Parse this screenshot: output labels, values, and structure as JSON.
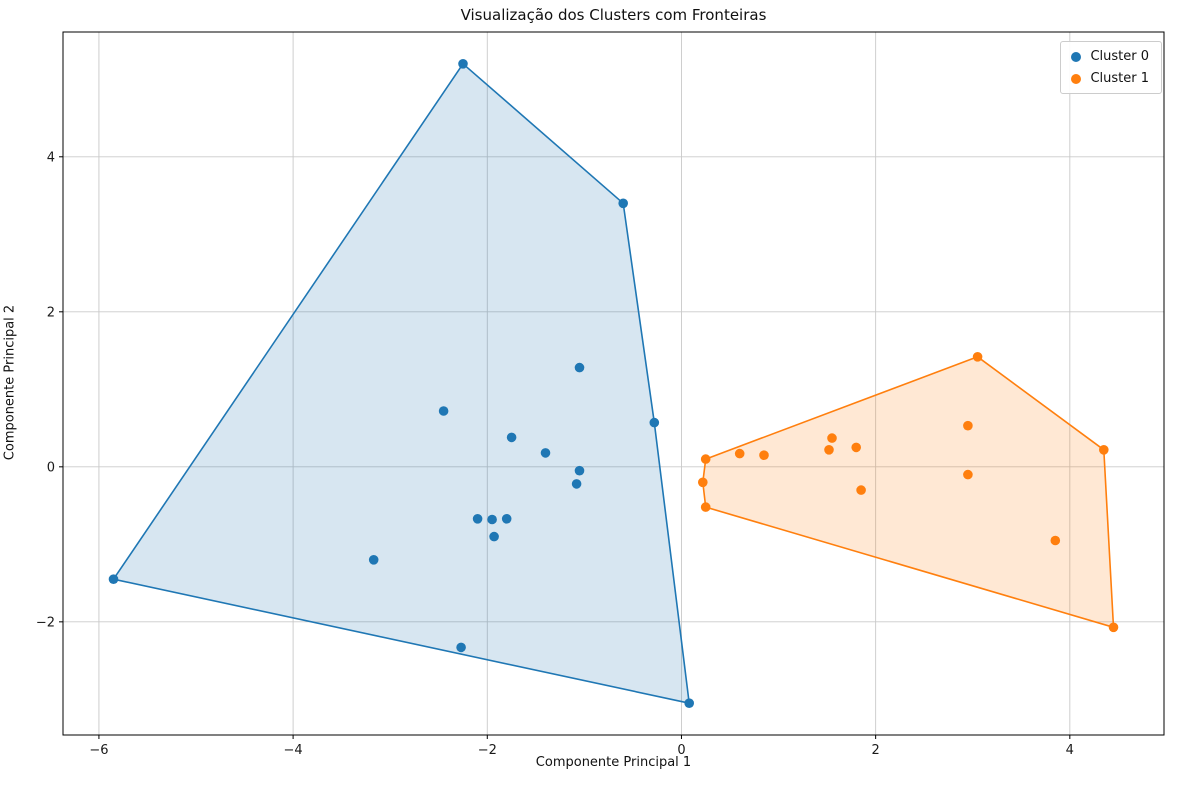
{
  "chart_data": {
    "type": "scatter",
    "title": "Visualização dos Clusters com Fronteiras",
    "xlabel": "Componente Principal 1",
    "ylabel": "Componente Principal 2",
    "xlim": [
      -6.37,
      4.97
    ],
    "ylim": [
      -3.46,
      5.61
    ],
    "xticks": [
      -6,
      -4,
      -2,
      0,
      2,
      4
    ],
    "yticks": [
      -2,
      0,
      2,
      4
    ],
    "grid": true,
    "legend_position": "upper right",
    "series": [
      {
        "name": "Cluster 0",
        "color": "#1f77b4",
        "fill_alpha": 0.18,
        "points": [
          [
            -5.85,
            -1.45
          ],
          [
            -3.17,
            -1.2
          ],
          [
            -2.45,
            0.72
          ],
          [
            -2.27,
            -2.33
          ],
          [
            -2.25,
            5.2
          ],
          [
            -2.1,
            -0.67
          ],
          [
            -1.95,
            -0.68
          ],
          [
            -1.93,
            -0.9
          ],
          [
            -1.8,
            -0.67
          ],
          [
            -1.75,
            0.38
          ],
          [
            -1.4,
            0.18
          ],
          [
            -1.05,
            1.28
          ],
          [
            -1.05,
            -0.05
          ],
          [
            -1.08,
            -0.22
          ],
          [
            -0.6,
            3.4
          ],
          [
            -0.28,
            0.57
          ],
          [
            0.08,
            -3.05
          ]
        ],
        "hull": [
          [
            -5.85,
            -1.45
          ],
          [
            -2.25,
            5.2
          ],
          [
            -0.6,
            3.4
          ],
          [
            -0.28,
            0.57
          ],
          [
            0.08,
            -3.05
          ]
        ]
      },
      {
        "name": "Cluster 1",
        "color": "#ff7f0e",
        "fill_alpha": 0.18,
        "points": [
          [
            0.25,
            0.1
          ],
          [
            0.22,
            -0.2
          ],
          [
            0.25,
            -0.52
          ],
          [
            0.6,
            0.17
          ],
          [
            0.85,
            0.15
          ],
          [
            1.52,
            0.22
          ],
          [
            1.55,
            0.37
          ],
          [
            1.8,
            0.25
          ],
          [
            1.85,
            -0.3
          ],
          [
            2.95,
            0.53
          ],
          [
            2.95,
            -0.1
          ],
          [
            3.05,
            1.42
          ],
          [
            3.85,
            -0.95
          ],
          [
            4.35,
            0.22
          ],
          [
            4.45,
            -2.07
          ]
        ],
        "hull": [
          [
            0.25,
            0.1
          ],
          [
            3.05,
            1.42
          ],
          [
            4.35,
            0.22
          ],
          [
            4.45,
            -2.07
          ],
          [
            0.25,
            -0.52
          ],
          [
            0.22,
            -0.2
          ]
        ]
      }
    ]
  }
}
